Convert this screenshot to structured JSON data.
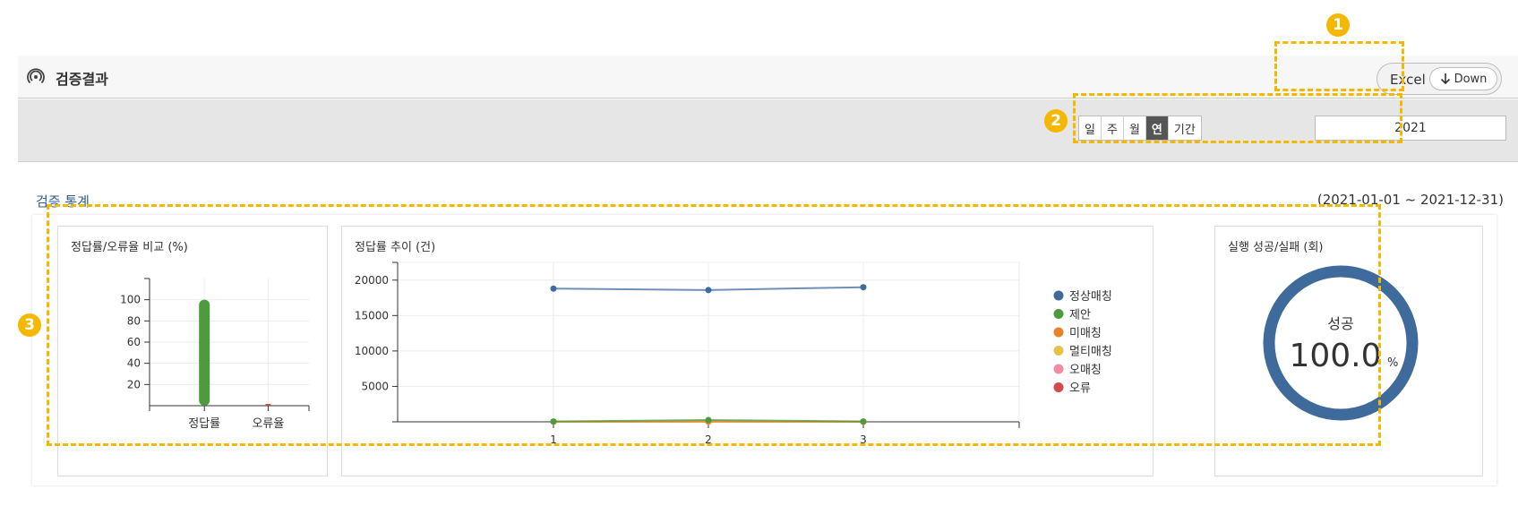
{
  "header": {
    "title": "검증결과",
    "excel_label": "Excel",
    "down_label": "Down"
  },
  "filter": {
    "periods": [
      "일",
      "주",
      "월",
      "연",
      "기간"
    ],
    "active_period": "연",
    "year_value": "2021"
  },
  "section": {
    "title": "검증 통계",
    "date_range": "(2021-01-01 ~ 2021-12-31)"
  },
  "cards": {
    "bar_title": "정답률/오류율 비교 (%)",
    "line_title": "정답률 추이 (건)",
    "donut_title": "실행 성공/실패 (회)"
  },
  "donut": {
    "label": "성공",
    "value": "100.0",
    "unit": "%"
  },
  "annotations": {
    "m1": "1",
    "m2": "2",
    "m3": "3"
  },
  "colors": {
    "accent": "#f5b800",
    "donut": "#3f6a9c"
  },
  "chart_data": [
    {
      "type": "bar",
      "categories": [
        "정답률",
        "오류율"
      ],
      "values": [
        100,
        0
      ],
      "ylim": [
        0,
        120
      ],
      "yticks": [
        "20",
        "40",
        "60",
        "80",
        "100"
      ],
      "colors": [
        "#4e9a3f",
        "#d24a3f"
      ]
    },
    {
      "type": "line",
      "x": [
        "1",
        "2",
        "3"
      ],
      "ylim": [
        0,
        22500
      ],
      "yticks": [
        "5000",
        "10000",
        "15000",
        "20000"
      ],
      "series": [
        {
          "name": "정상매칭",
          "color": "#3f6a9c",
          "values": [
            18800,
            18600,
            19000
          ]
        },
        {
          "name": "제안",
          "color": "#4e9a3f",
          "values": [
            50,
            250,
            50
          ]
        },
        {
          "name": "미매칭",
          "color": "#e8832a",
          "values": [
            30,
            60,
            20
          ]
        },
        {
          "name": "멀티매칭",
          "color": "#e6c24a",
          "values": [
            5,
            5,
            5
          ]
        },
        {
          "name": "오매칭",
          "color": "#f08ca0",
          "values": [
            5,
            5,
            5
          ]
        },
        {
          "name": "오류",
          "color": "#d24a4a",
          "values": [
            10,
            10,
            10
          ]
        }
      ]
    },
    {
      "type": "pie",
      "categories": [
        "성공"
      ],
      "values": [
        100.0
      ]
    }
  ]
}
